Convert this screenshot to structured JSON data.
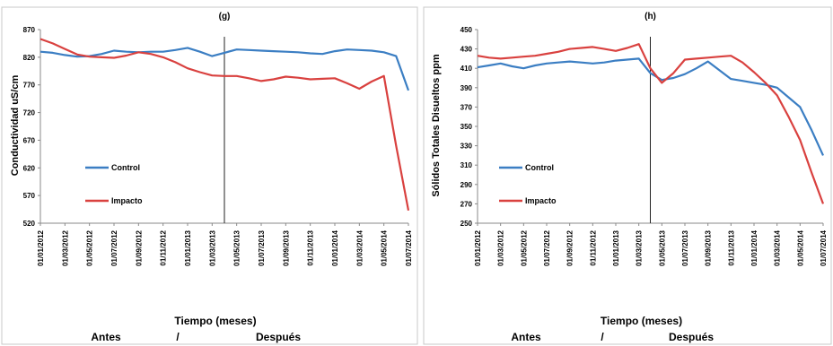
{
  "chart_data": [
    {
      "type": "line",
      "title": "(g)",
      "xlabel": "Tiempo (meses)",
      "ylabel": "Conductividad  uS/cm",
      "ylim": [
        520,
        870
      ],
      "yticks": [
        520,
        570,
        620,
        670,
        720,
        770,
        820,
        870
      ],
      "grid": false,
      "legend_position": "lower-left",
      "period_labels": {
        "before": "Antes",
        "separator": "/",
        "after": "Después"
      },
      "event_x": "01/04/2013",
      "x": [
        "01/01/2012",
        "01/02/2012",
        "01/03/2012",
        "01/04/2012",
        "01/05/2012",
        "01/06/2012",
        "01/07/2012",
        "01/08/2012",
        "01/09/2012",
        "01/10/2012",
        "01/11/2012",
        "01/12/2012",
        "01/01/2013",
        "01/02/2013",
        "01/03/2013",
        "01/04/2013",
        "01/05/2013",
        "01/06/2013",
        "01/07/2013",
        "01/08/2013",
        "01/09/2013",
        "01/10/2013",
        "01/11/2013",
        "01/12/2013",
        "01/01/2014",
        "01/02/2014",
        "01/03/2014",
        "01/04/2014",
        "01/05/2014",
        "01/06/2014",
        "01/07/2014"
      ],
      "series": [
        {
          "name": "Control",
          "color": "#3b7ec3",
          "values": [
            830,
            828,
            824,
            821,
            822,
            826,
            832,
            830,
            829,
            830,
            830,
            833,
            837,
            830,
            822,
            828,
            834,
            833,
            832,
            831,
            830,
            829,
            827,
            826,
            831,
            834,
            833,
            832,
            829,
            822,
            760
          ]
        },
        {
          "name": "Impacto",
          "color": "#d9413f",
          "values": [
            853,
            845,
            835,
            825,
            821,
            820,
            819,
            823,
            829,
            826,
            820,
            811,
            800,
            793,
            787,
            786,
            786,
            782,
            777,
            780,
            785,
            783,
            780,
            781,
            782,
            773,
            763,
            776,
            786,
            660,
            543
          ]
        }
      ],
      "tick_labels": [
        "01/01/2012",
        "01/03/2012",
        "01/05/2012",
        "01/07/2012",
        "01/09/2012",
        "01/11/2012",
        "01/01/2013",
        "01/03/2013",
        "01/05/2013",
        "01/07/2013",
        "01/09/2013",
        "01/11/2013",
        "01/01/2014",
        "01/03/2014",
        "01/05/2014",
        "01/07/2014"
      ]
    },
    {
      "type": "line",
      "title": "(h)",
      "xlabel": "Tiempo (meses)",
      "ylabel": "Sólidos Totales Disueltos  ppm",
      "ylim": [
        250,
        450
      ],
      "yticks": [
        250,
        270,
        290,
        310,
        330,
        350,
        370,
        390,
        410,
        430,
        450
      ],
      "grid": false,
      "legend_position": "lower-left",
      "period_labels": {
        "before": "Antes",
        "separator": "/",
        "after": "Después"
      },
      "event_x": "01/04/2013",
      "x": [
        "01/01/2012",
        "01/02/2012",
        "01/03/2012",
        "01/04/2012",
        "01/05/2012",
        "01/06/2012",
        "01/07/2012",
        "01/08/2012",
        "01/09/2012",
        "01/10/2012",
        "01/11/2012",
        "01/12/2012",
        "01/01/2013",
        "01/02/2013",
        "01/03/2013",
        "01/04/2013",
        "01/05/2013",
        "01/06/2013",
        "01/07/2013",
        "01/08/2013",
        "01/09/2013",
        "01/10/2013",
        "01/11/2013",
        "01/12/2013",
        "01/01/2014",
        "01/02/2014",
        "01/03/2014",
        "01/04/2014",
        "01/05/2014",
        "01/06/2014",
        "01/07/2014"
      ],
      "series": [
        {
          "name": "Control",
          "color": "#3b7ec3",
          "values": [
            411,
            413,
            415,
            412,
            410,
            413,
            415,
            416,
            417,
            416,
            415,
            416,
            418,
            419,
            420,
            405,
            398,
            400,
            404,
            410,
            417,
            408,
            399,
            397,
            395,
            393,
            390,
            380,
            370,
            346,
            320
          ]
        },
        {
          "name": "Impacto",
          "color": "#d9413f",
          "values": [
            423,
            421,
            420,
            421,
            422,
            423,
            425,
            427,
            430,
            431,
            432,
            430,
            428,
            431,
            435,
            410,
            395,
            405,
            419,
            420,
            421,
            422,
            423,
            416,
            406,
            395,
            382,
            360,
            336,
            302,
            270
          ]
        }
      ],
      "tick_labels": [
        "01/01/2012",
        "01/03/2012",
        "01/05/2012",
        "01/07/2012",
        "01/09/2012",
        "01/11/2012",
        "01/01/2013",
        "01/03/2013",
        "01/05/2013",
        "01/07/2013",
        "01/09/2013",
        "01/11/2013",
        "01/01/2014",
        "01/03/2014",
        "01/05/2014",
        "01/07/2014"
      ]
    }
  ]
}
